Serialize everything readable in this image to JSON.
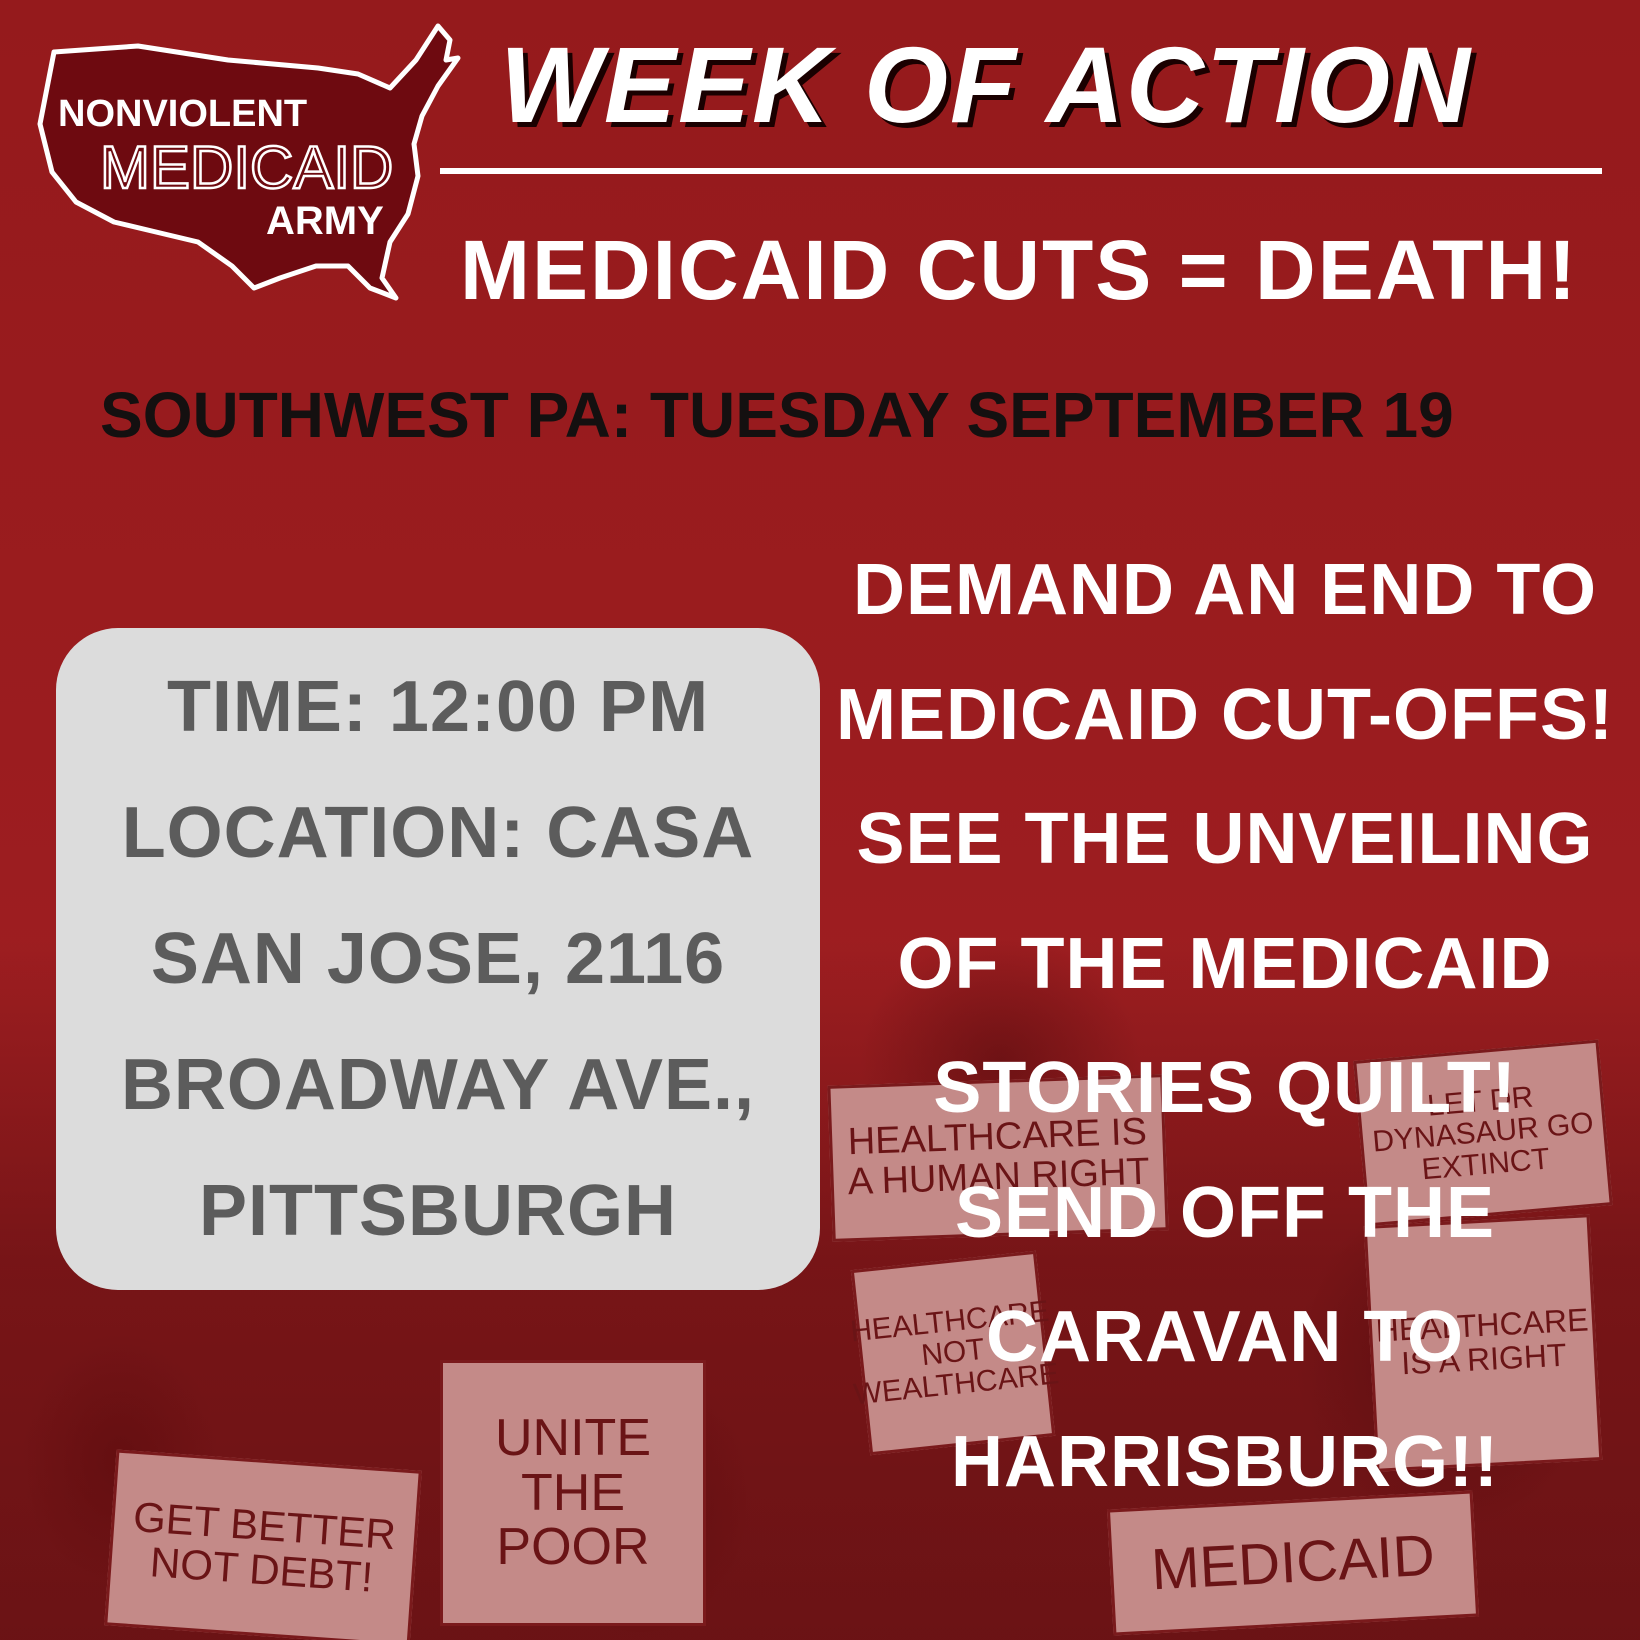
{
  "logo": {
    "line1": "NONVIOLENT",
    "line2": "MEDICAID",
    "line3": "ARMY"
  },
  "title": "WEEK OF ACTION",
  "subtitle": "MEDICAID CUTS = DEATH!",
  "event_line": "SOUTHWEST PA: TUESDAY SEPTEMBER 19",
  "info": {
    "lines": [
      "TIME: 12:00 PM",
      "LOCATION: CASA",
      "SAN JOSE, 2116",
      "BROADWAY AVE.,",
      "PITTSBURGH"
    ]
  },
  "demands": {
    "lines": [
      "DEMAND AN END TO",
      "MEDICAID CUT-OFFS!",
      "SEE THE UNVEILING",
      "OF THE MEDICAID",
      "STORIES QUILT!",
      "SEND OFF THE",
      "CARAVAN TO",
      "HARRISBURG!!"
    ]
  },
  "background_signs": [
    "GET BETTER NOT DEBT!",
    "UNITE THE POOR",
    "HEALTHCARE IS A HUMAN RIGHT",
    "MEDICAID",
    "HEALTHCARE NOT WEALTHCARE",
    "LET DR DYNASAUR GO EXTINCT",
    "HEALTHCARE IS A RIGHT"
  ],
  "colors": {
    "background": "#9b1c1f",
    "logo_fill": "#6e0a10",
    "info_box": "#dcdcdc",
    "info_text": "#5c5c5c",
    "event_text": "#141010",
    "headline_text": "#ffffff"
  }
}
